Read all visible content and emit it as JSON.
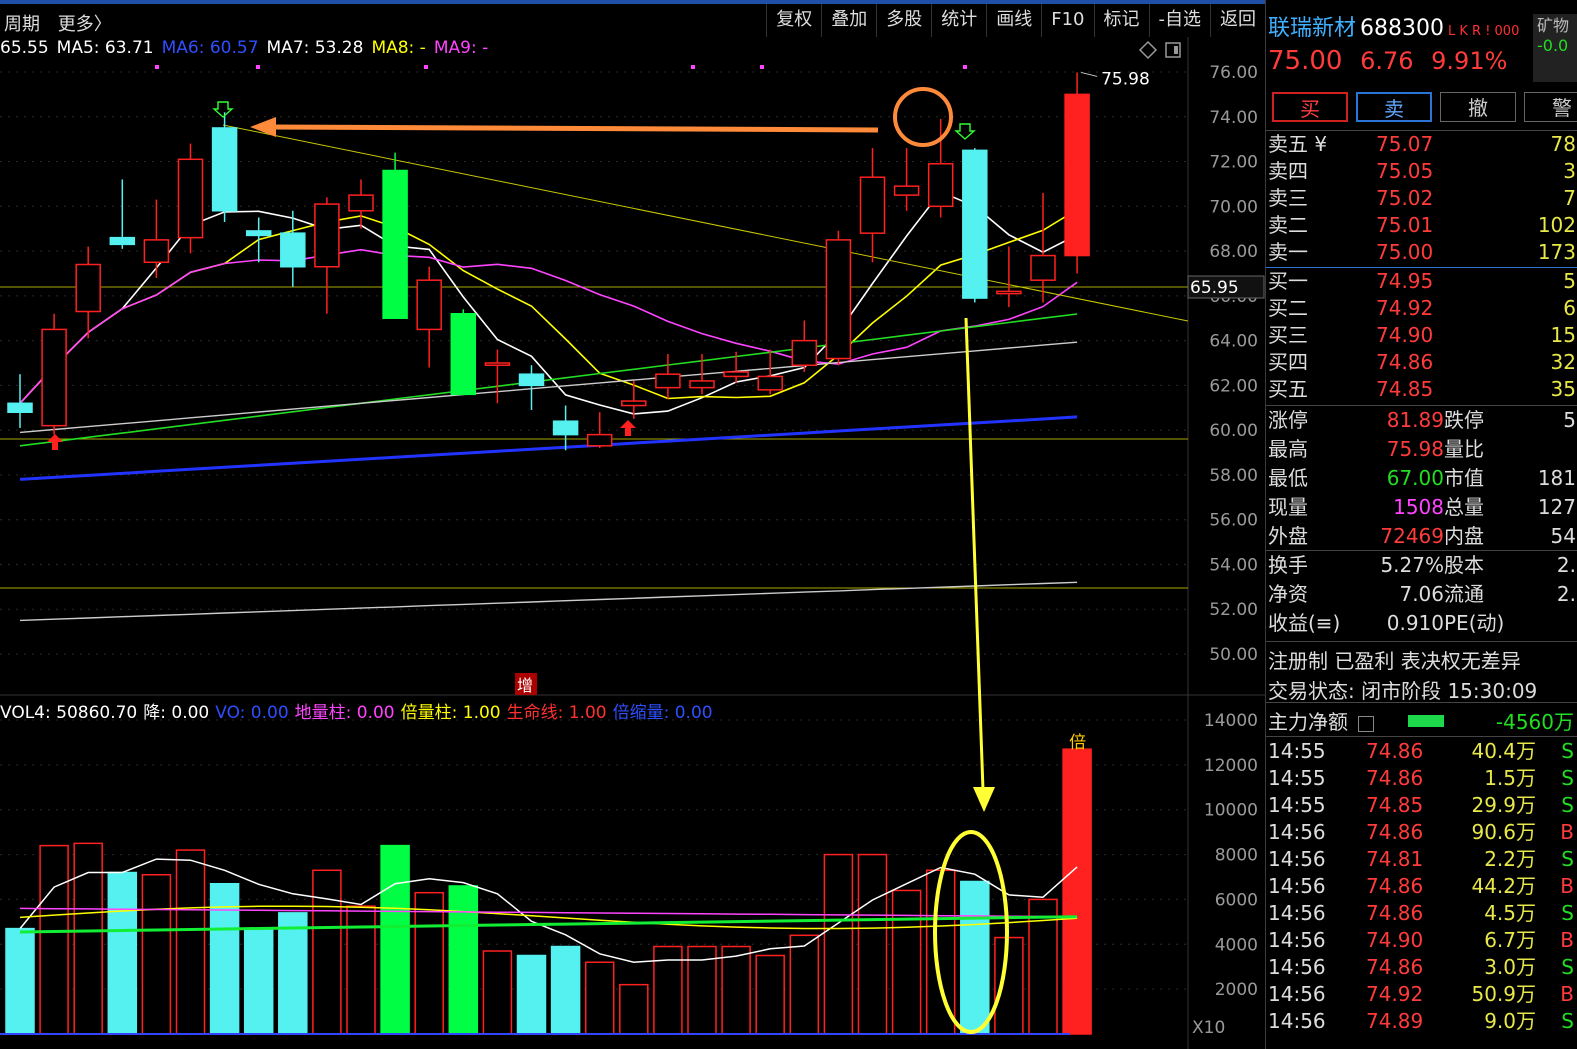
{
  "topbar": {
    "period_label": "周期",
    "more_label": "更多〉",
    "buttons": [
      "复权",
      "叠加",
      "多股",
      "统计",
      "画线",
      "F10",
      "标记",
      "-自选",
      "返回"
    ]
  },
  "ma_legend": [
    {
      "label": "65.55",
      "color": "#ffffff"
    },
    {
      "label": "MA5: 63.71",
      "color": "#ffffff"
    },
    {
      "label": "MA6: 60.57",
      "color": "#2f4fff"
    },
    {
      "label": "MA7: 53.28",
      "color": "#ffffff"
    },
    {
      "label": "MA8: -",
      "color": "#ffff00"
    },
    {
      "label": "MA9: -",
      "color": "#ff44ff"
    }
  ],
  "vol_legend": [
    {
      "label": "VOL4: 50860.70",
      "color": "#ffffff"
    },
    {
      "label": "降: 0.00",
      "color": "#ffffff"
    },
    {
      "label": "VO: 0.00",
      "color": "#2f4fff"
    },
    {
      "label": "地量柱: 0.00",
      "color": "#ff44ff"
    },
    {
      "label": "倍量柱: 1.00",
      "color": "#ffff00"
    },
    {
      "label": "生命线: 1.00",
      "color": "#ff3030"
    },
    {
      "label": "倍缩量: 0.00",
      "color": "#2f4fff"
    }
  ],
  "colors": {
    "up": "#ff2020",
    "down": "#55f0f0",
    "big_down": "#00ff44",
    "ma_white": "#ffffff",
    "ma_yellow": "#ffff00",
    "ma_magenta": "#ff44ff",
    "ma_green": "#22dd22",
    "ma_grey": "#cccccc",
    "ma_blue": "#2233ff",
    "annot_orange": "#ff8a3a",
    "annot_yellow": "#ffff33",
    "axis": "#9a9a9a"
  },
  "chart_data": {
    "type": "candlestick",
    "price_axis": {
      "ylim": [
        49.0,
        77.0
      ],
      "ticks": [
        "76.00",
        "74.00",
        "72.00",
        "70.00",
        "68.00",
        "66.00",
        "64.00",
        "62.00",
        "60.00",
        "58.00",
        "56.00",
        "54.00",
        "52.00",
        "50.00"
      ]
    },
    "volume_axis": {
      "ylim": [
        0,
        14500
      ],
      "ticks": [
        "14000",
        "12000",
        "10000",
        "8000",
        "6000",
        "4000",
        "2000"
      ],
      "unit_label": "X10"
    },
    "candles": [
      {
        "o": 60.8,
        "h": 62.5,
        "l": 60.1,
        "c": 61.2,
        "vol": 4700,
        "kind": "down"
      },
      {
        "o": 60.2,
        "h": 65.2,
        "l": 59.8,
        "c": 64.5,
        "vol": 8400,
        "kind": "up"
      },
      {
        "o": 65.3,
        "h": 68.2,
        "l": 64.1,
        "c": 67.4,
        "vol": 8500,
        "kind": "up"
      },
      {
        "o": 68.3,
        "h": 71.2,
        "l": 68.1,
        "c": 68.6,
        "vol": 7200,
        "kind": "down"
      },
      {
        "o": 67.5,
        "h": 70.3,
        "l": 66.8,
        "c": 68.5,
        "vol": 7100,
        "kind": "up"
      },
      {
        "o": 68.6,
        "h": 72.8,
        "l": 67.9,
        "c": 72.1,
        "vol": 8200,
        "kind": "up"
      },
      {
        "o": 73.5,
        "h": 74.2,
        "l": 69.3,
        "c": 69.8,
        "vol": 6700,
        "kind": "down"
      },
      {
        "o": 68.9,
        "h": 69.5,
        "l": 67.5,
        "c": 68.7,
        "vol": 4700,
        "kind": "down"
      },
      {
        "o": 68.8,
        "h": 69.8,
        "l": 66.4,
        "c": 67.3,
        "vol": 5400,
        "kind": "down"
      },
      {
        "o": 67.3,
        "h": 70.4,
        "l": 65.2,
        "c": 70.1,
        "vol": 7300,
        "kind": "up"
      },
      {
        "o": 69.8,
        "h": 71.2,
        "l": 69.0,
        "c": 70.5,
        "vol": 5700,
        "kind": "up"
      },
      {
        "o": 71.6,
        "h": 72.4,
        "l": 65.0,
        "c": 65.0,
        "vol": 8400,
        "kind": "big_down"
      },
      {
        "o": 64.5,
        "h": 67.3,
        "l": 62.8,
        "c": 66.7,
        "vol": 6300,
        "kind": "up"
      },
      {
        "o": 65.2,
        "h": 65.4,
        "l": 61.6,
        "c": 61.6,
        "vol": 6600,
        "kind": "big_down"
      },
      {
        "o": 63.0,
        "h": 63.6,
        "l": 61.2,
        "c": 62.9,
        "vol": 3700,
        "kind": "up"
      },
      {
        "o": 62.5,
        "h": 62.9,
        "l": 60.9,
        "c": 62.0,
        "vol": 3500,
        "kind": "down"
      },
      {
        "o": 60.4,
        "h": 61.1,
        "l": 59.1,
        "c": 59.8,
        "vol": 3900,
        "kind": "down"
      },
      {
        "o": 59.3,
        "h": 60.8,
        "l": 59.2,
        "c": 59.8,
        "vol": 3200,
        "kind": "up"
      },
      {
        "o": 61.1,
        "h": 62.2,
        "l": 60.5,
        "c": 61.3,
        "vol": 2200,
        "kind": "up"
      },
      {
        "o": 61.9,
        "h": 63.4,
        "l": 61.4,
        "c": 62.5,
        "vol": 3900,
        "kind": "up"
      },
      {
        "o": 61.9,
        "h": 63.4,
        "l": 61.6,
        "c": 62.2,
        "vol": 3900,
        "kind": "up"
      },
      {
        "o": 62.4,
        "h": 63.5,
        "l": 62.1,
        "c": 62.6,
        "vol": 3900,
        "kind": "up"
      },
      {
        "o": 61.8,
        "h": 63.6,
        "l": 61.6,
        "c": 62.4,
        "vol": 3500,
        "kind": "up"
      },
      {
        "o": 62.9,
        "h": 64.9,
        "l": 62.6,
        "c": 64.0,
        "vol": 4400,
        "kind": "up"
      },
      {
        "o": 63.2,
        "h": 68.9,
        "l": 62.9,
        "c": 68.5,
        "vol": 8000,
        "kind": "up"
      },
      {
        "o": 68.8,
        "h": 72.6,
        "l": 67.5,
        "c": 71.3,
        "vol": 8000,
        "kind": "up"
      },
      {
        "o": 70.5,
        "h": 72.6,
        "l": 69.8,
        "c": 70.9,
        "vol": 6400,
        "kind": "up"
      },
      {
        "o": 70.0,
        "h": 73.9,
        "l": 69.5,
        "c": 71.9,
        "vol": 7300,
        "kind": "up"
      },
      {
        "o": 72.5,
        "h": 72.6,
        "l": 65.7,
        "c": 65.9,
        "vol": 6800,
        "kind": "down"
      },
      {
        "o": 66.1,
        "h": 68.2,
        "l": 65.5,
        "c": 66.2,
        "vol": 4300,
        "kind": "up"
      },
      {
        "o": 66.7,
        "h": 70.6,
        "l": 65.7,
        "c": 67.8,
        "vol": 6000,
        "kind": "up"
      },
      {
        "o": 67.8,
        "h": 75.98,
        "l": 67.0,
        "c": 75.0,
        "vol": 12700,
        "kind": "big_up"
      }
    ],
    "price_marks": {
      "high_label": "75.98",
      "current_line": "65.95"
    },
    "annotations": {
      "volume_marker": "倍",
      "event_marker": "增"
    }
  },
  "panel": {
    "name": "联瑞新材",
    "code": "688300",
    "tags": "L K R ! 000",
    "mine_label": "矿物",
    "mine_value": "-0.0",
    "price": "75.00",
    "change": "6.76",
    "change_pct": "9.91%",
    "trade_buttons": [
      "买",
      "卖",
      "撤",
      "警"
    ],
    "asks": [
      {
        "label": "卖五 ¥",
        "price": "75.07",
        "vol": "78"
      },
      {
        "label": "卖四",
        "price": "75.05",
        "vol": "3"
      },
      {
        "label": "卖三",
        "price": "75.02",
        "vol": "7"
      },
      {
        "label": "卖二",
        "price": "75.01",
        "vol": "102"
      },
      {
        "label": "卖一",
        "price": "75.00",
        "vol": "173"
      }
    ],
    "bids": [
      {
        "label": "买一",
        "price": "74.95",
        "vol": "5"
      },
      {
        "label": "买二",
        "price": "74.92",
        "vol": "6"
      },
      {
        "label": "买三",
        "price": "74.90",
        "vol": "15"
      },
      {
        "label": "买四",
        "price": "74.86",
        "vol": "32"
      },
      {
        "label": "买五",
        "price": "74.85",
        "vol": "35"
      }
    ],
    "stats": [
      {
        "l1": "涨停",
        "v1": "81.89",
        "c1": "#ff3b3b",
        "l2": "跌停",
        "v2": "5"
      },
      {
        "l1": "最高",
        "v1": "75.98",
        "c1": "#ff3b3b",
        "l2": "量比",
        "v2": ""
      },
      {
        "l1": "最低",
        "v1": "67.00",
        "c1": "#22dd22",
        "l2": "市值",
        "v2": "181"
      },
      {
        "l1": "现量",
        "v1": "1508",
        "c1": "#ff44ff",
        "l2": "总量",
        "v2": "127"
      },
      {
        "l1": "外盘",
        "v1": "72469",
        "c1": "#ff3b3b",
        "l2": "内盘",
        "v2": "54"
      }
    ],
    "stats2": [
      {
        "l1": "换手",
        "v1": "5.27%",
        "c1": "#dddddd",
        "l2": "股本",
        "v2": "2."
      },
      {
        "l1": "净资",
        "v1": "7.06",
        "c1": "#dddddd",
        "l2": "流通",
        "v2": "2."
      },
      {
        "l1": "收益(≡)",
        "v1": "0.910",
        "c1": "#dddddd",
        "l2": "PE(动)",
        "v2": ""
      }
    ],
    "info1": "注册制 已盈利 表决权无差异",
    "info2": "交易状态: 闭市阶段 15:30:09",
    "netflow_label": "主力净额",
    "netflow_value": "-4560万",
    "ticks": [
      {
        "t": "14:55",
        "p": "74.86",
        "a": "40.4万",
        "d": "S"
      },
      {
        "t": "14:55",
        "p": "74.86",
        "a": "1.5万",
        "d": "S"
      },
      {
        "t": "14:55",
        "p": "74.85",
        "a": "29.9万",
        "d": "S"
      },
      {
        "t": "14:56",
        "p": "74.86",
        "a": "90.6万",
        "d": "B"
      },
      {
        "t": "14:56",
        "p": "74.81",
        "a": "2.2万",
        "d": "S"
      },
      {
        "t": "14:56",
        "p": "74.86",
        "a": "44.2万",
        "d": "B"
      },
      {
        "t": "14:56",
        "p": "74.86",
        "a": "4.5万",
        "d": "S"
      },
      {
        "t": "14:56",
        "p": "74.90",
        "a": "6.7万",
        "d": "B"
      },
      {
        "t": "14:56",
        "p": "74.86",
        "a": "3.0万",
        "d": "S"
      },
      {
        "t": "14:56",
        "p": "74.92",
        "a": "50.9万",
        "d": "B"
      },
      {
        "t": "14:56",
        "p": "74.89",
        "a": "9.0万",
        "d": "S"
      }
    ]
  }
}
